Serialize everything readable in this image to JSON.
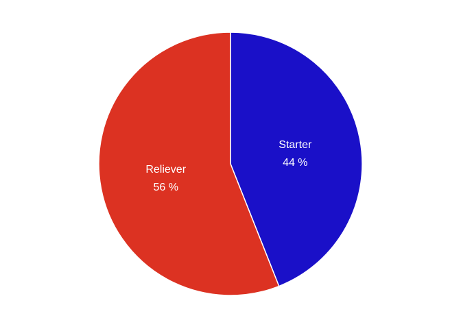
{
  "chart_data": {
    "type": "pie",
    "slices": [
      {
        "label": "Starter",
        "value": 44,
        "percent_text": "44 %",
        "color": "#1a10c8"
      },
      {
        "label": "Reliever",
        "value": 56,
        "percent_text": "56 %",
        "color": "#dc3222"
      }
    ],
    "start": "top",
    "direction": "clockwise",
    "slice_border_color": "#ffffff",
    "legend": "none"
  }
}
